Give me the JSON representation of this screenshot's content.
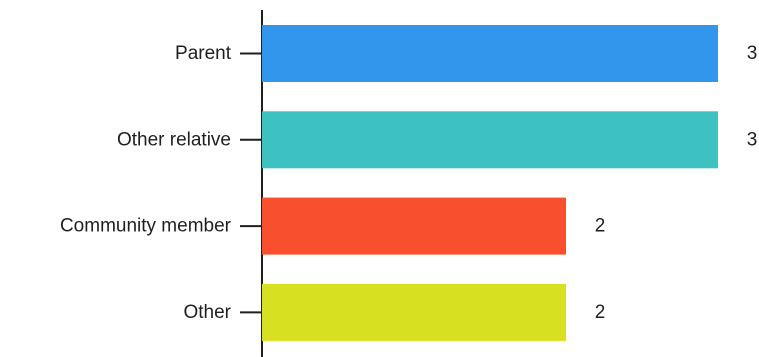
{
  "chart_data": {
    "type": "bar",
    "orientation": "horizontal",
    "categories": [
      "Parent",
      "Other relative",
      "Community member",
      "Other"
    ],
    "values": [
      3,
      3,
      2,
      2
    ],
    "colors": [
      "#3296ED",
      "#3DC1C1",
      "#F8502E",
      "#D7E021"
    ],
    "xlim": [
      0,
      3
    ],
    "grid": false,
    "data_labels": true
  }
}
